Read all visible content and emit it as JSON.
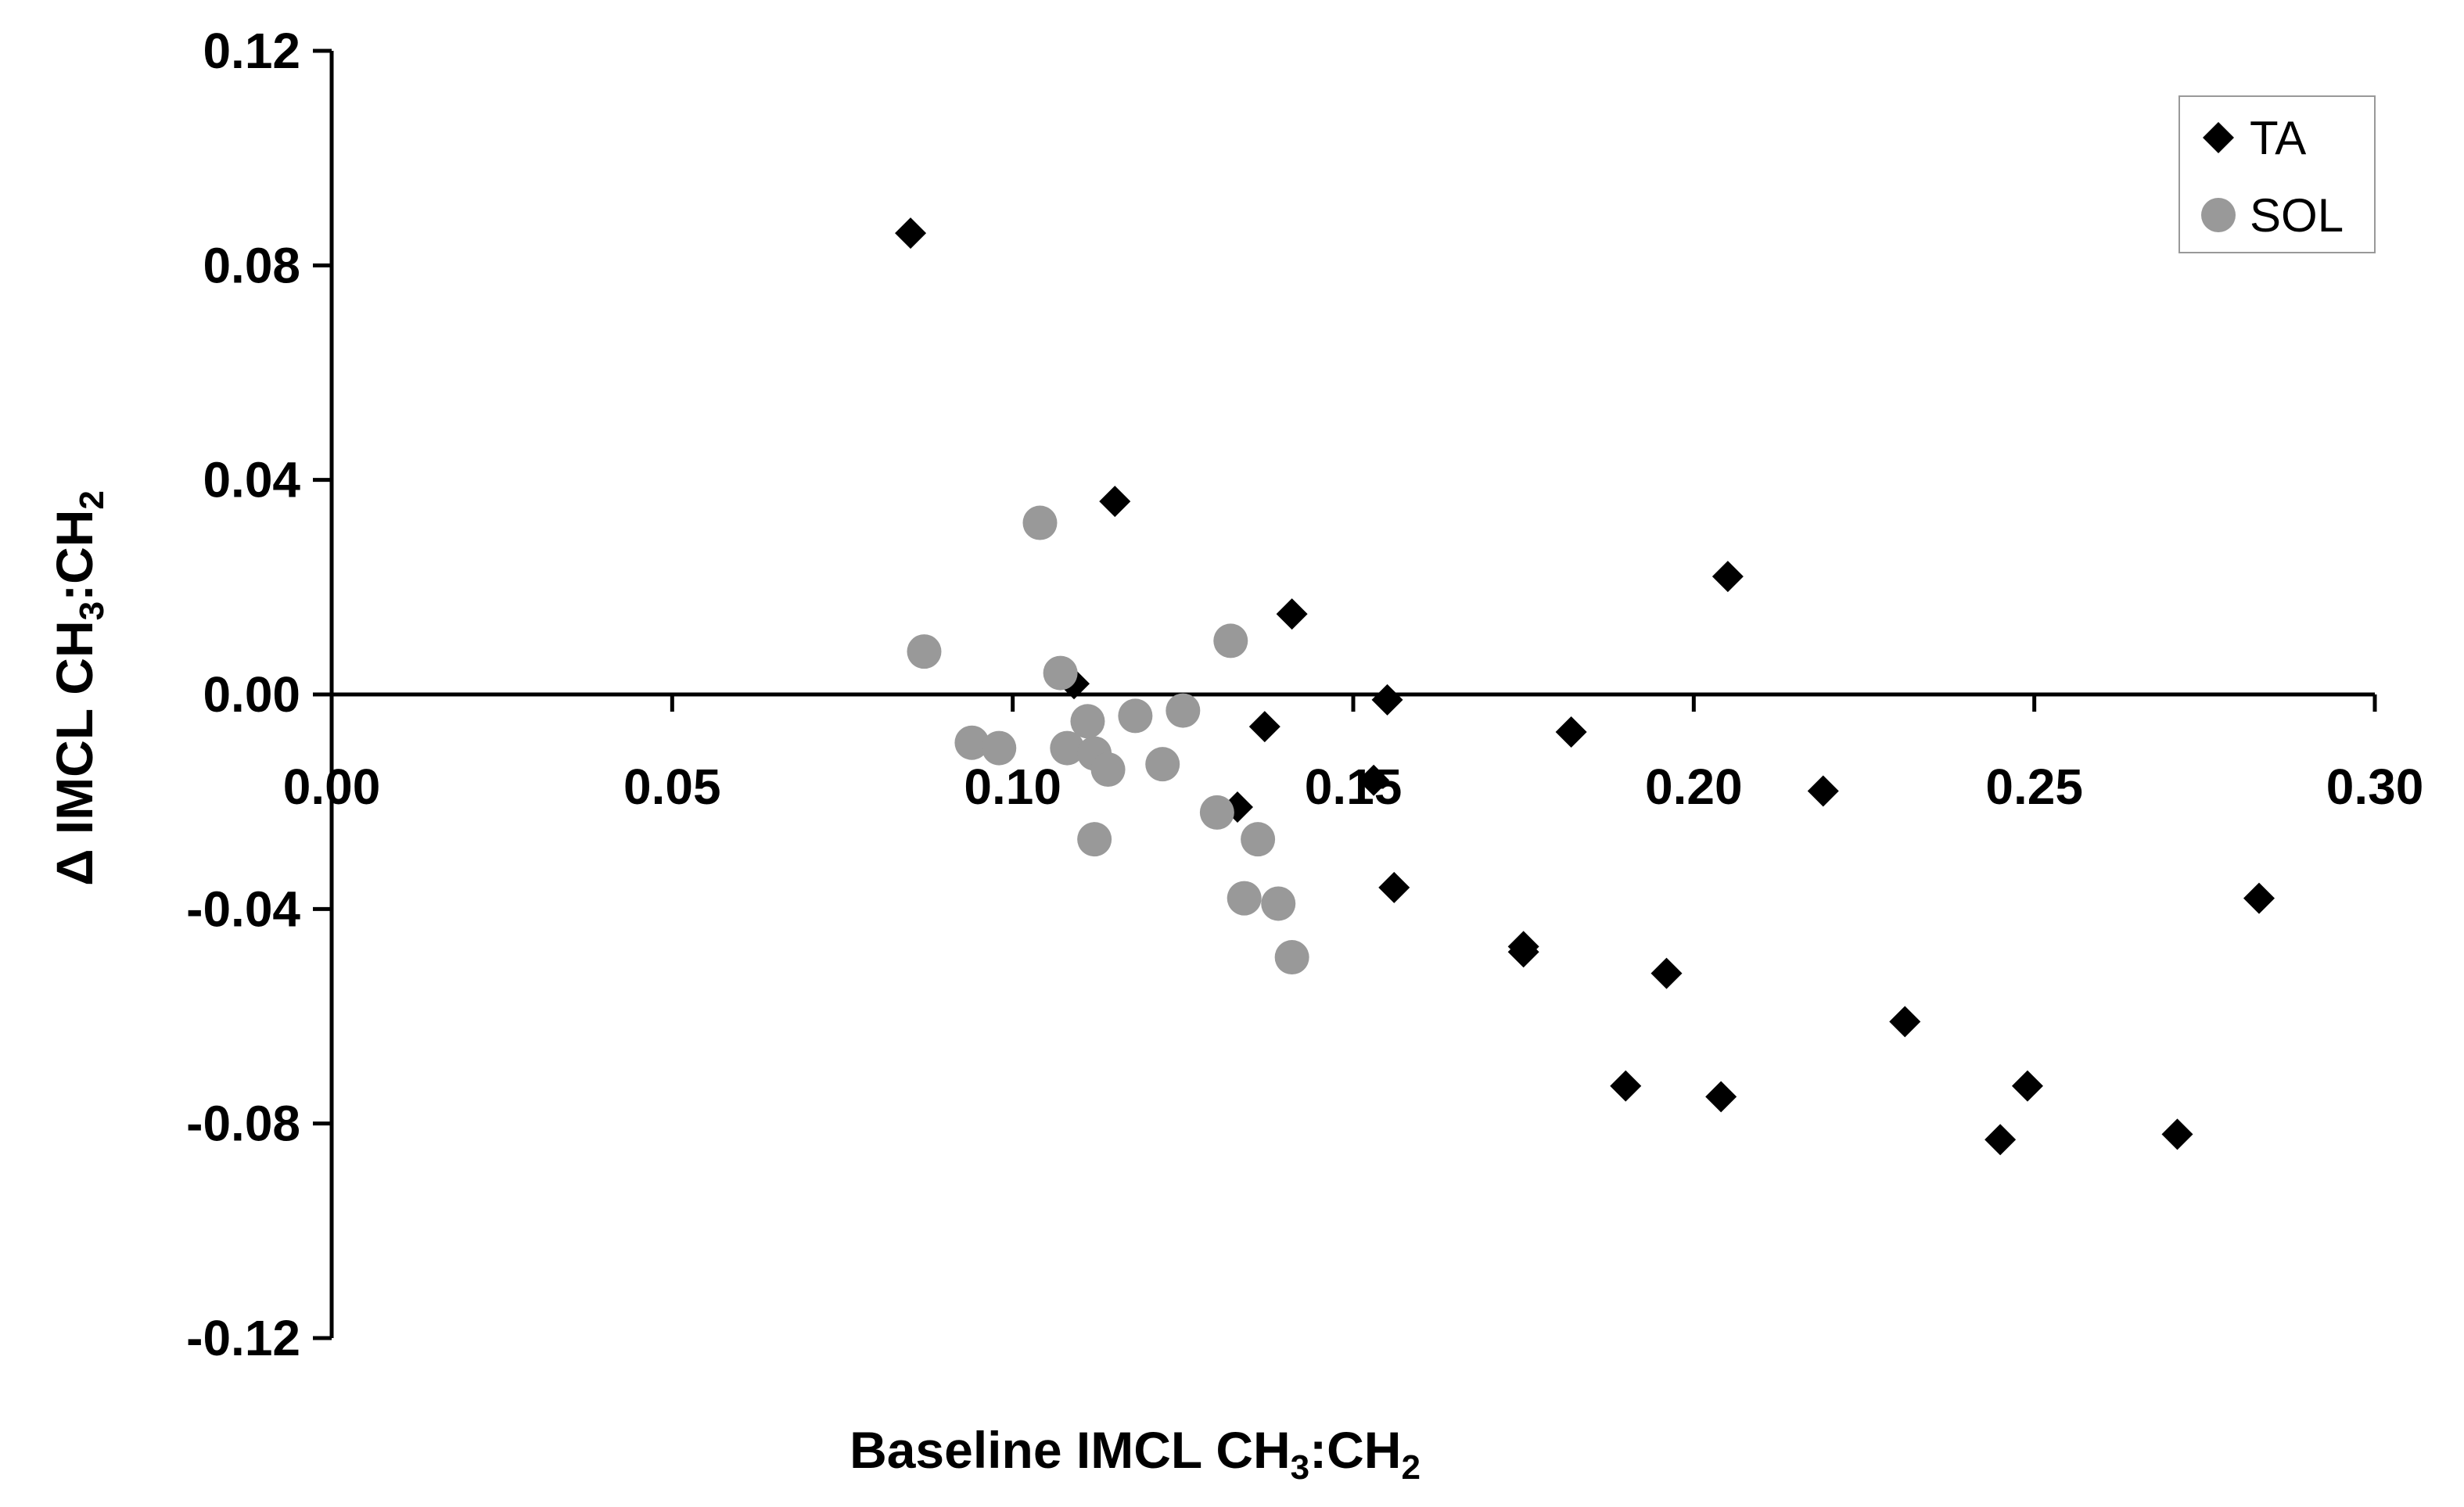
{
  "chart_data": {
    "type": "scatter",
    "xlabel": {
      "prefix": "Baseline IMCL CH",
      "sub1": "3",
      "mid": ":CH",
      "sub2": "2"
    },
    "ylabel": {
      "prefix": "Δ IMCL CH",
      "sub1": "3",
      "mid": ":CH",
      "sub2": "2"
    },
    "xlim": [
      0,
      0.3
    ],
    "ylim": [
      -0.12,
      0.12
    ],
    "x_ticks": [
      "0.00",
      "0.05",
      "0.10",
      "0.15",
      "0.20",
      "0.25",
      "0.30"
    ],
    "y_ticks": [
      "0.12",
      "0.08",
      "0.04",
      "0.00",
      "-0.04",
      "-0.08",
      "-0.12"
    ],
    "grid": false,
    "legend_position": "top-right",
    "series": [
      {
        "name": "TA",
        "marker": "diamond",
        "color": "#000000",
        "points": [
          [
            0.085,
            0.086
          ],
          [
            0.109,
            0.002
          ],
          [
            0.115,
            0.036
          ],
          [
            0.141,
            0.015
          ],
          [
            0.137,
            -0.006
          ],
          [
            0.133,
            -0.021
          ],
          [
            0.155,
            -0.001
          ],
          [
            0.153,
            -0.016
          ],
          [
            0.156,
            -0.036
          ],
          [
            0.175,
            -0.047
          ],
          [
            0.175,
            -0.048
          ],
          [
            0.182,
            -0.007
          ],
          [
            0.19,
            -0.073
          ],
          [
            0.196,
            -0.052
          ],
          [
            0.204,
            -0.075
          ],
          [
            0.205,
            0.022
          ],
          [
            0.219,
            -0.018
          ],
          [
            0.231,
            -0.061
          ],
          [
            0.245,
            -0.083
          ],
          [
            0.249,
            -0.073
          ],
          [
            0.271,
            -0.082
          ],
          [
            0.283,
            -0.038
          ]
        ]
      },
      {
        "name": "SOL",
        "marker": "circle",
        "color": "#999999",
        "points": [
          [
            0.087,
            0.008
          ],
          [
            0.094,
            -0.009
          ],
          [
            0.098,
            -0.01
          ],
          [
            0.104,
            0.032
          ],
          [
            0.107,
            0.004
          ],
          [
            0.108,
            -0.01
          ],
          [
            0.111,
            -0.005
          ],
          [
            0.112,
            -0.011
          ],
          [
            0.112,
            -0.027
          ],
          [
            0.114,
            -0.014
          ],
          [
            0.118,
            -0.004
          ],
          [
            0.122,
            -0.013
          ],
          [
            0.125,
            -0.003
          ],
          [
            0.13,
            -0.022
          ],
          [
            0.132,
            0.01
          ],
          [
            0.134,
            -0.038
          ],
          [
            0.136,
            -0.027
          ],
          [
            0.139,
            -0.039
          ],
          [
            0.141,
            -0.049
          ]
        ]
      }
    ]
  }
}
